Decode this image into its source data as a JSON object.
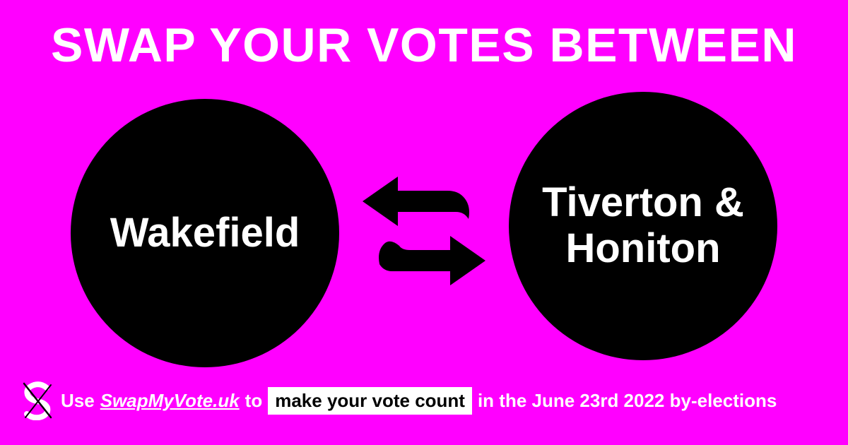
{
  "colors": {
    "background": "#ff00ff",
    "circle": "#000000",
    "text_light": "#ffffff",
    "text_dark": "#000000"
  },
  "headline": "SWAP YOUR VOTES BETWEEN",
  "left_constituency": {
    "name": "Wakefield"
  },
  "right_constituency": {
    "line1": "Tiverton &",
    "line2": "Honiton"
  },
  "arrows_icon": "swap-arrows-icon",
  "footer": {
    "logo_icon": "swapmyvote-logo-icon",
    "use_text": "Use",
    "link_text": "SwapMyVote.uk",
    "to_text": "to",
    "highlight_text": "make your vote count",
    "tail_text": "in the June 23rd 2022 by-elections"
  }
}
